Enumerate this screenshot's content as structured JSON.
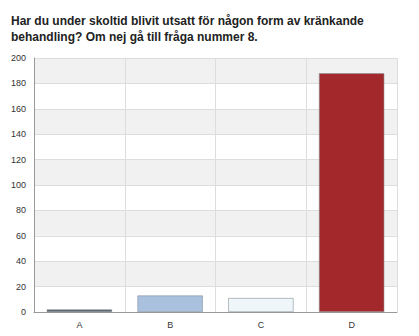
{
  "chart_data": {
    "type": "bar",
    "title": "Har du under skoltid blivit utsatt för någon form av kränkande behandling? Om nej gå till fråga nummer 8.",
    "categories": [
      "A",
      "B",
      "C",
      "D"
    ],
    "values": [
      2,
      13,
      11,
      188
    ],
    "colors": [
      "#56606d",
      "#aac0df",
      "#eef6f9",
      "#a3282b"
    ],
    "ylim": [
      0,
      200
    ],
    "yticks": [
      0,
      20,
      40,
      60,
      80,
      100,
      120,
      140,
      160,
      180,
      200
    ],
    "grid": true
  }
}
